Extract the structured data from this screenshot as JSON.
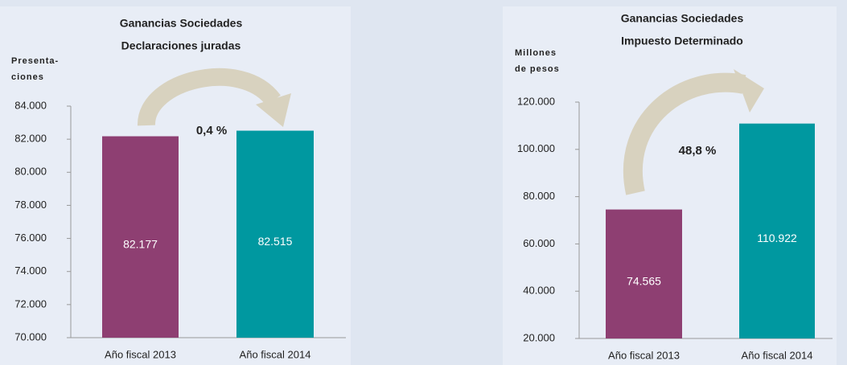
{
  "chart_data": [
    {
      "type": "bar",
      "title": [
        "Ganancias Sociedades",
        "Declaraciones juradas"
      ],
      "ylabel": [
        "Presenta-",
        "ciones"
      ],
      "categories": [
        "Año fiscal 2013",
        "Año fiscal 2014"
      ],
      "values": [
        82177,
        82515
      ],
      "value_labels": [
        "82.177",
        "82.515"
      ],
      "colors": [
        "#8e3f72",
        "#0098a0"
      ],
      "annotation": "0,4 %",
      "ylim": [
        70000,
        84000
      ],
      "yticks": [
        {
          "value": 70000,
          "label": "70.000"
        },
        {
          "value": 72000,
          "label": "72.000"
        },
        {
          "value": 74000,
          "label": "74.000"
        },
        {
          "value": 76000,
          "label": "76.000"
        },
        {
          "value": 78000,
          "label": "78.000"
        },
        {
          "value": 80000,
          "label": "80.000"
        },
        {
          "value": 82000,
          "label": "82.000"
        },
        {
          "value": 84000,
          "label": "84.000"
        }
      ]
    },
    {
      "type": "bar",
      "title": [
        "Ganancias Sociedades",
        "Impuesto Determinado"
      ],
      "ylabel": [
        "Millones",
        "de pesos"
      ],
      "categories": [
        "Año fiscal 2013",
        "Año fiscal 2014"
      ],
      "values": [
        74565,
        110922
      ],
      "value_labels": [
        "74.565",
        "110.922"
      ],
      "colors": [
        "#8e3f72",
        "#0098a0"
      ],
      "annotation": "48,8 %",
      "ylim": [
        20000,
        120000
      ],
      "yticks": [
        {
          "value": 20000,
          "label": "20.000"
        },
        {
          "value": 40000,
          "label": "40.000"
        },
        {
          "value": 60000,
          "label": "60.000"
        },
        {
          "value": 80000,
          "label": "80.000"
        },
        {
          "value": 100000,
          "label": "100.000"
        },
        {
          "value": 120000,
          "label": "120.000"
        }
      ]
    }
  ]
}
